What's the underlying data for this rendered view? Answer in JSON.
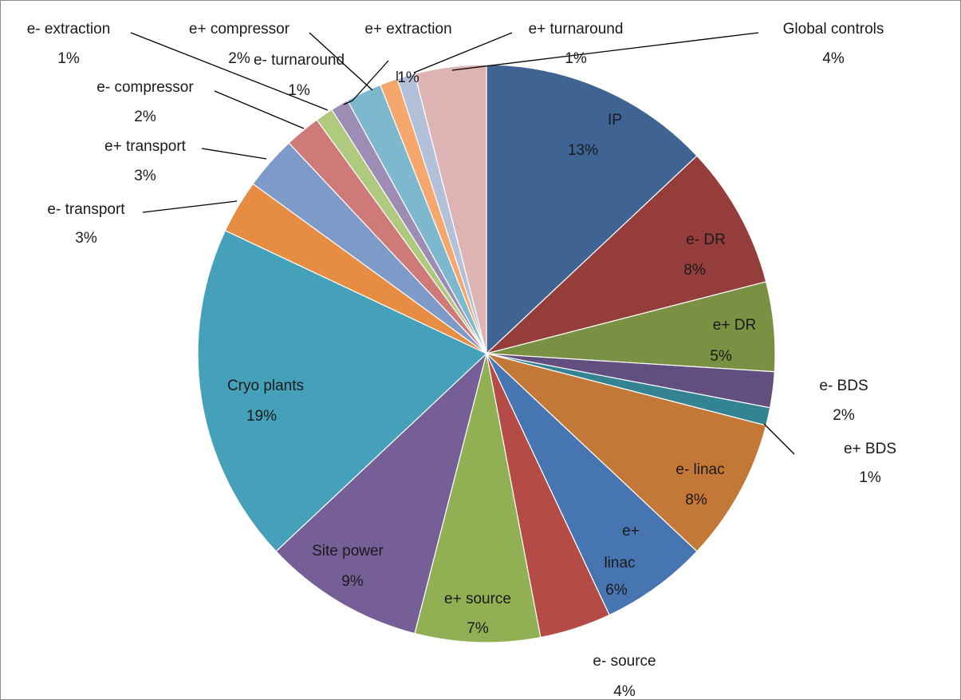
{
  "chart_data": {
    "type": "pie",
    "start_angle_deg": 0,
    "direction": "clockwise",
    "slices": [
      {
        "label": "IP",
        "value": 13,
        "value_label": "13%",
        "color": "#3F6493"
      },
      {
        "label": "e- DR",
        "value": 8,
        "value_label": "8%",
        "color": "#943D3B"
      },
      {
        "label": "e+ DR",
        "value": 5,
        "value_label": "5%",
        "color": "#7A9143"
      },
      {
        "label": "e- BDS",
        "value": 2,
        "value_label": "2%",
        "color": "#634E80"
      },
      {
        "label": "e+ BDS",
        "value": 1,
        "value_label": "1%",
        "color": "#348393"
      },
      {
        "label": "e- linac",
        "value": 8,
        "value_label": "8%",
        "color": "#C47837"
      },
      {
        "label": "e+ linac",
        "value": 6,
        "value_label": "6%",
        "color": "#4775B1"
      },
      {
        "label": "e- source",
        "value": 4,
        "value_label": "4%",
        "color": "#B54B47"
      },
      {
        "label": "e+ source",
        "value": 7,
        "value_label": "7%",
        "color": "#91AF53"
      },
      {
        "label": "Site power",
        "value": 9,
        "value_label": "9%",
        "color": "#765E97"
      },
      {
        "label": "Cryo plants",
        "value": 19,
        "value_label": "19%",
        "color": "#45A0B9"
      },
      {
        "label": "e- transport",
        "value": 3,
        "value_label": "3%",
        "color": "#E68C43"
      },
      {
        "label": "e+ transport",
        "value": 3,
        "value_label": "3%",
        "color": "#7D9AC8"
      },
      {
        "label": "e- compressor",
        "value": 2,
        "value_label": "2%",
        "color": "#CD7A78"
      },
      {
        "label": "e- extraction",
        "value": 1,
        "value_label": "1%",
        "color": "#AFC97F"
      },
      {
        "label": "e- turnaround",
        "value": 1,
        "value_label": "1%",
        "color": "#9D8CB3"
      },
      {
        "label": "e+ compressor",
        "value": 2,
        "value_label": "2%",
        "color": "#7EB8CE"
      },
      {
        "label": "e+ extraction",
        "value": 1,
        "value_label": "1%",
        "color": "#F5A76E"
      },
      {
        "label": "e+ turnaround",
        "value": 1,
        "value_label": "1%",
        "color": "#B3C0DA"
      },
      {
        "label": "Global controls",
        "value": 4,
        "value_label": "4%",
        "color": "#DDB4B3"
      }
    ]
  }
}
